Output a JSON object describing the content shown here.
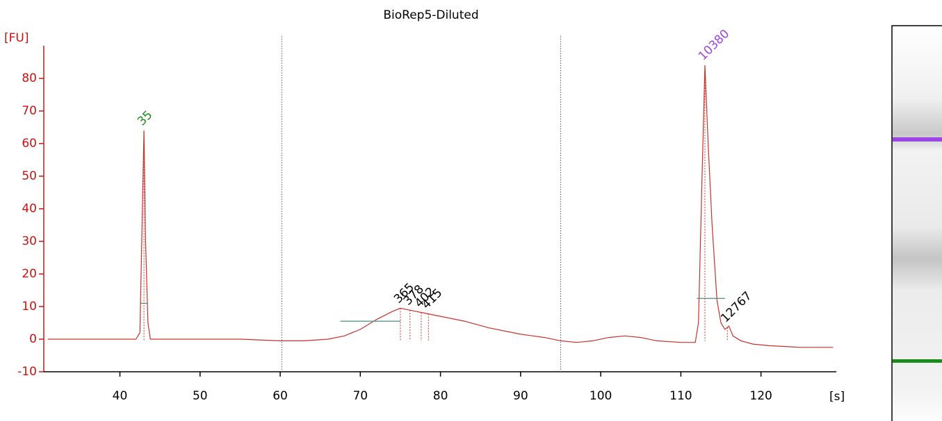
{
  "chart_data": {
    "type": "line",
    "title": "BioRep5-Diluted",
    "y_label": "[FU]",
    "x_label": "[s]",
    "color": "#c8302a",
    "x": [
      31,
      35,
      38,
      42,
      42.5,
      42.8,
      43,
      43.2,
      43.5,
      43.8,
      46,
      50,
      55,
      60,
      63,
      66,
      68,
      70,
      72,
      74,
      75,
      76,
      77,
      78,
      80,
      83,
      86,
      90,
      93,
      95,
      97,
      99,
      101,
      103,
      105,
      107,
      110,
      111.8,
      112.2,
      112.6,
      113,
      113.4,
      113.9,
      114.5,
      115,
      115.5,
      116,
      116.5,
      117.5,
      119,
      121,
      125,
      129
    ],
    "values": [
      0,
      0,
      0,
      0,
      2,
      40,
      64,
      30,
      5,
      0,
      0,
      0,
      0,
      -0.5,
      -0.5,
      0,
      1,
      3,
      6,
      8.5,
      9.5,
      9,
      8.5,
      8,
      7,
      5.5,
      3.5,
      1.5,
      0.5,
      -0.5,
      -1,
      -0.5,
      0.5,
      1,
      0.5,
      -0.5,
      -1,
      -1,
      5,
      45,
      84,
      60,
      35,
      12,
      5,
      3,
      4,
      1,
      -0.5,
      -1.5,
      -2,
      -2.5,
      -2.5
    ],
    "xlim": [
      30.5,
      129.4
    ],
    "ylim": [
      -10,
      90
    ],
    "xticks": [
      40,
      50,
      60,
      70,
      80,
      90,
      100,
      110,
      120
    ],
    "yticks": [
      -10,
      0,
      10,
      20,
      30,
      40,
      50,
      60,
      70,
      80
    ],
    "region_lines": [
      60.2,
      95
    ],
    "width_markers": [
      {
        "x": [
          42.5,
          43.5
        ],
        "y": 11
      },
      {
        "x": [
          67.5,
          75
        ],
        "y": 5.5
      },
      {
        "x": [
          112,
          115.5
        ],
        "y": 12.5
      }
    ],
    "peaks": [
      {
        "label": "35",
        "time": 43,
        "color": "#1a8a1a"
      },
      {
        "label": "365",
        "time": 75,
        "color": "#000000"
      },
      {
        "label": "378",
        "time": 76.2,
        "color": "#000000"
      },
      {
        "label": "402",
        "time": 77.6,
        "color": "#000000"
      },
      {
        "label": "415",
        "time": 78.5,
        "color": "#000000"
      },
      {
        "label": "10380",
        "time": 113,
        "color": "#9b45e6"
      },
      {
        "label": "12767",
        "time": 115.8,
        "color": "#000000"
      }
    ]
  }
}
